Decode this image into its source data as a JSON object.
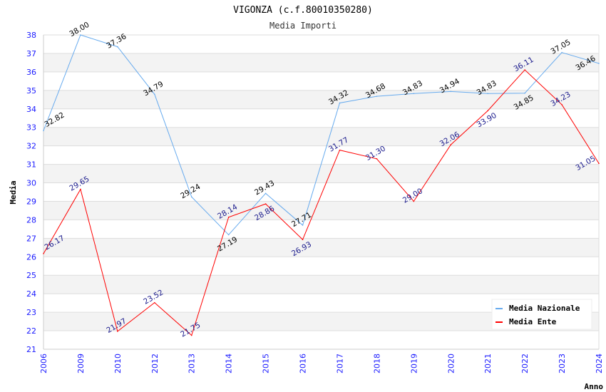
{
  "chart_data": {
    "type": "line",
    "title": "VIGONZA (c.f.80010350280)",
    "subtitle": "Media Importi",
    "xlabel": "Anno",
    "ylabel": "Media",
    "ylim": [
      21,
      38
    ],
    "yticks": [
      21,
      22,
      23,
      24,
      25,
      26,
      27,
      28,
      29,
      30,
      31,
      32,
      33,
      34,
      35,
      36,
      37,
      38
    ],
    "categories": [
      "2006",
      "2009",
      "2010",
      "2012",
      "2013",
      "2014",
      "2015",
      "2016",
      "2017",
      "2018",
      "2019",
      "2020",
      "2021",
      "2022",
      "2023",
      "2024"
    ],
    "legend_position": "top-right",
    "series": [
      {
        "name": "Media Nazionale",
        "color": "#66aaee",
        "label_color": "#000000",
        "values": [
          32.82,
          38.0,
          37.36,
          34.79,
          29.24,
          27.19,
          29.43,
          27.71,
          34.32,
          34.68,
          34.83,
          34.94,
          34.83,
          34.85,
          37.05,
          36.46
        ]
      },
      {
        "name": "Media Ente",
        "color": "#ff0000",
        "label_color": "#1a1a8c",
        "values": [
          26.17,
          29.65,
          21.97,
          23.52,
          21.75,
          28.14,
          28.86,
          26.93,
          31.77,
          31.3,
          29.0,
          32.06,
          33.9,
          36.11,
          34.23,
          31.05
        ]
      }
    ]
  }
}
